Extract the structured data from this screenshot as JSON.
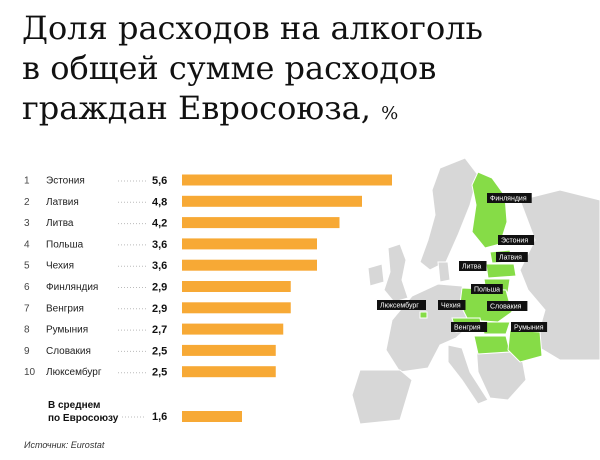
{
  "title": {
    "line1": "Доля расходов на алкоголь",
    "line2": "в общей сумме расходов",
    "line3": "граждан Евросоюза,",
    "unit": "%"
  },
  "source": "Источник: Eurostat",
  "colors": {
    "bar": "#f7a935",
    "map_highlight": "#86dc47",
    "map_base": "#d7d7d7"
  },
  "chart_data": {
    "type": "bar",
    "orientation": "horizontal",
    "categories": [
      "Эстония",
      "Латвия",
      "Литва",
      "Польша",
      "Чехия",
      "Финляндия",
      "Венгрия",
      "Румыния",
      "Словакия",
      "Люксембург"
    ],
    "ranks": [
      "1",
      "2",
      "3",
      "4",
      "5",
      "6",
      "7",
      "8",
      "9",
      "10"
    ],
    "values": [
      5.6,
      4.8,
      4.2,
      3.6,
      3.6,
      2.9,
      2.9,
      2.7,
      2.5,
      2.5
    ],
    "value_labels": [
      "5,6",
      "4,8",
      "4,2",
      "3,6",
      "3,6",
      "2,9",
      "2,9",
      "2,7",
      "2,5",
      "2,5"
    ],
    "average": {
      "label_line1": "В среднем",
      "label_line2": "по Евросоюзу",
      "value": 1.6,
      "value_label": "1,6"
    },
    "xlim": [
      0,
      5.6
    ]
  },
  "map": {
    "highlighted": [
      "Финляндия",
      "Эстония",
      "Латвия",
      "Литва",
      "Польша",
      "Чехия",
      "Словакия",
      "Венгрия",
      "Румыния",
      "Люксембург"
    ],
    "labels": [
      "Финляндия",
      "Эстония",
      "Латвия",
      "Литва",
      "Польша",
      "Люксембург",
      "Чехия",
      "Словакия",
      "Венгрия",
      "Румыния"
    ]
  }
}
